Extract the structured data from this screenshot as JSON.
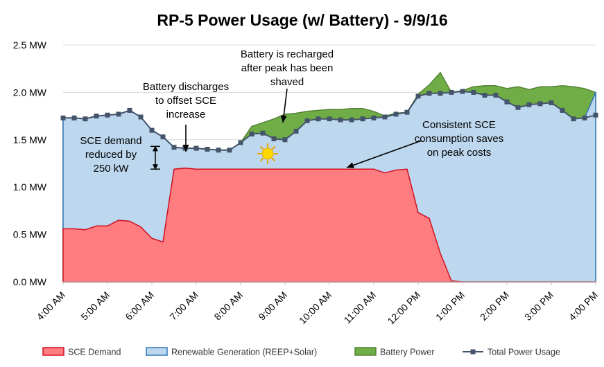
{
  "chart_data": {
    "type": "area",
    "title": "RP-5 Power Usage (w/ Battery) - 9/9/16",
    "xlabel": "",
    "ylabel": "",
    "ylim": [
      0,
      2.5
    ],
    "y_ticks": [
      "0.0 MW",
      "0.5 MW",
      "1.0 MW",
      "1.5 MW",
      "2.0 MW",
      "2.5 MW"
    ],
    "y_tick_values": [
      0,
      0.5,
      1.0,
      1.5,
      2.0,
      2.5
    ],
    "x_ticks": [
      "4:00 AM",
      "5:00 AM",
      "6:00 AM",
      "7:00 AM",
      "8:00 AM",
      "9:00 AM",
      "10:00 AM",
      "11:00 AM",
      "12:00 PM",
      "1:00 PM",
      "2:00 PM",
      "3:00 PM",
      "4:00 PM"
    ],
    "x_tick_hours": [
      4,
      5,
      6,
      7,
      8,
      9,
      10,
      11,
      12,
      13,
      14,
      15,
      16
    ],
    "x_hours": [
      4.0,
      4.25,
      4.5,
      4.75,
      5.0,
      5.25,
      5.5,
      5.75,
      6.0,
      6.25,
      6.5,
      6.75,
      7.0,
      7.25,
      7.5,
      7.75,
      8.0,
      8.25,
      8.5,
      8.75,
      9.0,
      9.25,
      9.5,
      9.75,
      10.0,
      10.25,
      10.5,
      10.75,
      11.0,
      11.25,
      11.5,
      11.75,
      12.0,
      12.25,
      12.5,
      12.75,
      13.0,
      13.25,
      13.5,
      13.75,
      14.0,
      14.25,
      14.5,
      14.75,
      15.0,
      15.25,
      15.5,
      15.75,
      16.0
    ],
    "grid": true,
    "legend_position": "bottom",
    "series": [
      {
        "name": "SCE Demand",
        "type": "area",
        "color": "#ff7c80",
        "edge": "#d01020",
        "values": [
          0.56,
          0.56,
          0.55,
          0.59,
          0.59,
          0.65,
          0.64,
          0.58,
          0.46,
          0.42,
          1.19,
          1.2,
          1.19,
          1.19,
          1.19,
          1.19,
          1.19,
          1.19,
          1.19,
          1.19,
          1.19,
          1.19,
          1.19,
          1.19,
          1.19,
          1.19,
          1.19,
          1.19,
          1.19,
          1.15,
          1.18,
          1.19,
          0.73,
          0.67,
          0.3,
          0.01,
          0.0,
          0.0,
          0.0,
          0.0,
          0.0,
          0.0,
          0.0,
          0.0,
          0.0,
          0.0,
          0.0,
          0.0,
          0.0
        ]
      },
      {
        "name": "Renewable Generation (REEP+Solar)",
        "type": "area",
        "color": "#bdd7ee",
        "edge": "#2e75b6",
        "values": [
          1.73,
          1.73,
          1.72,
          1.75,
          1.76,
          1.77,
          1.81,
          1.74,
          1.6,
          1.53,
          1.42,
          1.41,
          1.41,
          1.4,
          1.39,
          1.39,
          1.47,
          1.56,
          1.57,
          1.51,
          1.5,
          1.59,
          1.7,
          1.72,
          1.72,
          1.71,
          1.71,
          1.72,
          1.73,
          1.74,
          1.77,
          1.79,
          1.96,
          1.99,
          1.99,
          2.0,
          2.01,
          2.0,
          1.97,
          1.97,
          1.9,
          1.84,
          1.87,
          1.88,
          1.89,
          1.81,
          1.72,
          1.73,
          2.0
        ]
      },
      {
        "name": "Battery Power",
        "type": "area",
        "color": "#70ad47",
        "edge": "#548235",
        "values": [
          1.73,
          1.73,
          1.72,
          1.75,
          1.76,
          1.77,
          1.81,
          1.74,
          1.6,
          1.53,
          1.42,
          1.41,
          1.41,
          1.4,
          1.39,
          1.39,
          1.47,
          1.64,
          1.68,
          1.72,
          1.77,
          1.78,
          1.8,
          1.81,
          1.82,
          1.82,
          1.83,
          1.83,
          1.8,
          1.75,
          1.78,
          1.79,
          1.98,
          2.08,
          2.21,
          2.0,
          2.02,
          2.06,
          2.07,
          2.07,
          2.04,
          2.06,
          2.03,
          2.06,
          2.06,
          2.07,
          2.06,
          2.04,
          2.0
        ]
      },
      {
        "name": "Total Power Usage",
        "type": "line",
        "color": "#44546a",
        "values": [
          1.73,
          1.73,
          1.72,
          1.75,
          1.76,
          1.77,
          1.81,
          1.74,
          1.6,
          1.53,
          1.42,
          1.41,
          1.41,
          1.4,
          1.39,
          1.39,
          1.47,
          1.56,
          1.57,
          1.51,
          1.5,
          1.59,
          1.7,
          1.72,
          1.72,
          1.71,
          1.71,
          1.72,
          1.73,
          1.74,
          1.77,
          1.79,
          1.96,
          1.99,
          1.99,
          2.0,
          2.01,
          2.0,
          1.97,
          1.97,
          1.9,
          1.84,
          1.87,
          1.88,
          1.89,
          1.81,
          1.72,
          1.73,
          1.76
        ]
      }
    ],
    "annotations": [
      {
        "key": "sce",
        "lines": [
          "SCE demand",
          "reduced by",
          "250 kW"
        ]
      },
      {
        "key": "discharge",
        "lines": [
          "Battery discharges",
          "to offset SCE",
          "increase"
        ]
      },
      {
        "key": "recharge",
        "lines": [
          "Battery is recharged",
          "after peak has been",
          "shaved"
        ]
      },
      {
        "key": "consistent",
        "lines": [
          "Consistent SCE",
          "consumption saves",
          "on peak costs"
        ]
      }
    ]
  }
}
